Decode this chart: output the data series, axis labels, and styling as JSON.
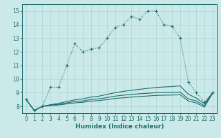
{
  "title": "",
  "xlabel": "Humidex (Indice chaleur)",
  "bg_color": "#cce9e9",
  "grid_color": "#aed4d4",
  "line_color": "#1a6b6b",
  "xlim": [
    -0.5,
    23.5
  ],
  "ylim": [
    7.5,
    15.5
  ],
  "xticks": [
    0,
    1,
    2,
    3,
    4,
    5,
    6,
    7,
    8,
    9,
    10,
    11,
    12,
    13,
    14,
    15,
    16,
    17,
    18,
    19,
    20,
    21,
    22,
    23
  ],
  "yticks": [
    8,
    9,
    10,
    11,
    12,
    13,
    14,
    15
  ],
  "main_line_x": [
    0,
    1,
    2,
    3,
    4,
    5,
    6,
    7,
    8,
    9,
    10,
    11,
    12,
    13,
    14,
    15,
    16,
    17,
    18,
    19,
    20,
    21,
    22,
    23
  ],
  "main_line_y": [
    8.5,
    7.7,
    8.0,
    9.4,
    9.4,
    11.0,
    12.6,
    12.0,
    12.2,
    12.3,
    13.0,
    13.8,
    14.0,
    14.6,
    14.4,
    15.0,
    15.0,
    14.0,
    13.9,
    13.0,
    9.8,
    9.0,
    8.3,
    9.0
  ],
  "line_flat1_x": [
    0,
    1,
    2,
    3,
    4,
    5,
    6,
    7,
    8,
    9,
    10,
    11,
    12,
    13,
    14,
    15,
    16,
    17,
    18,
    19,
    20,
    21,
    22,
    23
  ],
  "line_flat1_y": [
    8.5,
    7.7,
    8.0,
    8.1,
    8.15,
    8.25,
    8.35,
    8.4,
    8.5,
    8.55,
    8.65,
    8.75,
    8.82,
    8.88,
    8.92,
    8.96,
    9.0,
    9.02,
    9.03,
    9.05,
    8.55,
    8.4,
    8.05,
    9.0
  ],
  "line_flat2_x": [
    0,
    1,
    2,
    3,
    4,
    5,
    6,
    7,
    8,
    9,
    10,
    11,
    12,
    13,
    14,
    15,
    16,
    17,
    18,
    19,
    20,
    21,
    22,
    23
  ],
  "line_flat2_y": [
    8.5,
    7.7,
    8.0,
    8.12,
    8.22,
    8.35,
    8.48,
    8.55,
    8.68,
    8.75,
    8.88,
    9.0,
    9.1,
    9.18,
    9.25,
    9.32,
    9.38,
    9.42,
    9.45,
    9.5,
    8.9,
    8.6,
    8.2,
    9.0
  ],
  "line_flat3_x": [
    0,
    1,
    2,
    3,
    4,
    5,
    6,
    7,
    8,
    9,
    10,
    11,
    12,
    13,
    14,
    15,
    16,
    17,
    18,
    19,
    20,
    21,
    22,
    23
  ],
  "line_flat3_y": [
    8.5,
    7.7,
    8.0,
    8.05,
    8.1,
    8.18,
    8.25,
    8.3,
    8.38,
    8.42,
    8.5,
    8.58,
    8.63,
    8.68,
    8.72,
    8.76,
    8.8,
    8.82,
    8.83,
    8.85,
    8.4,
    8.25,
    7.95,
    8.95
  ]
}
